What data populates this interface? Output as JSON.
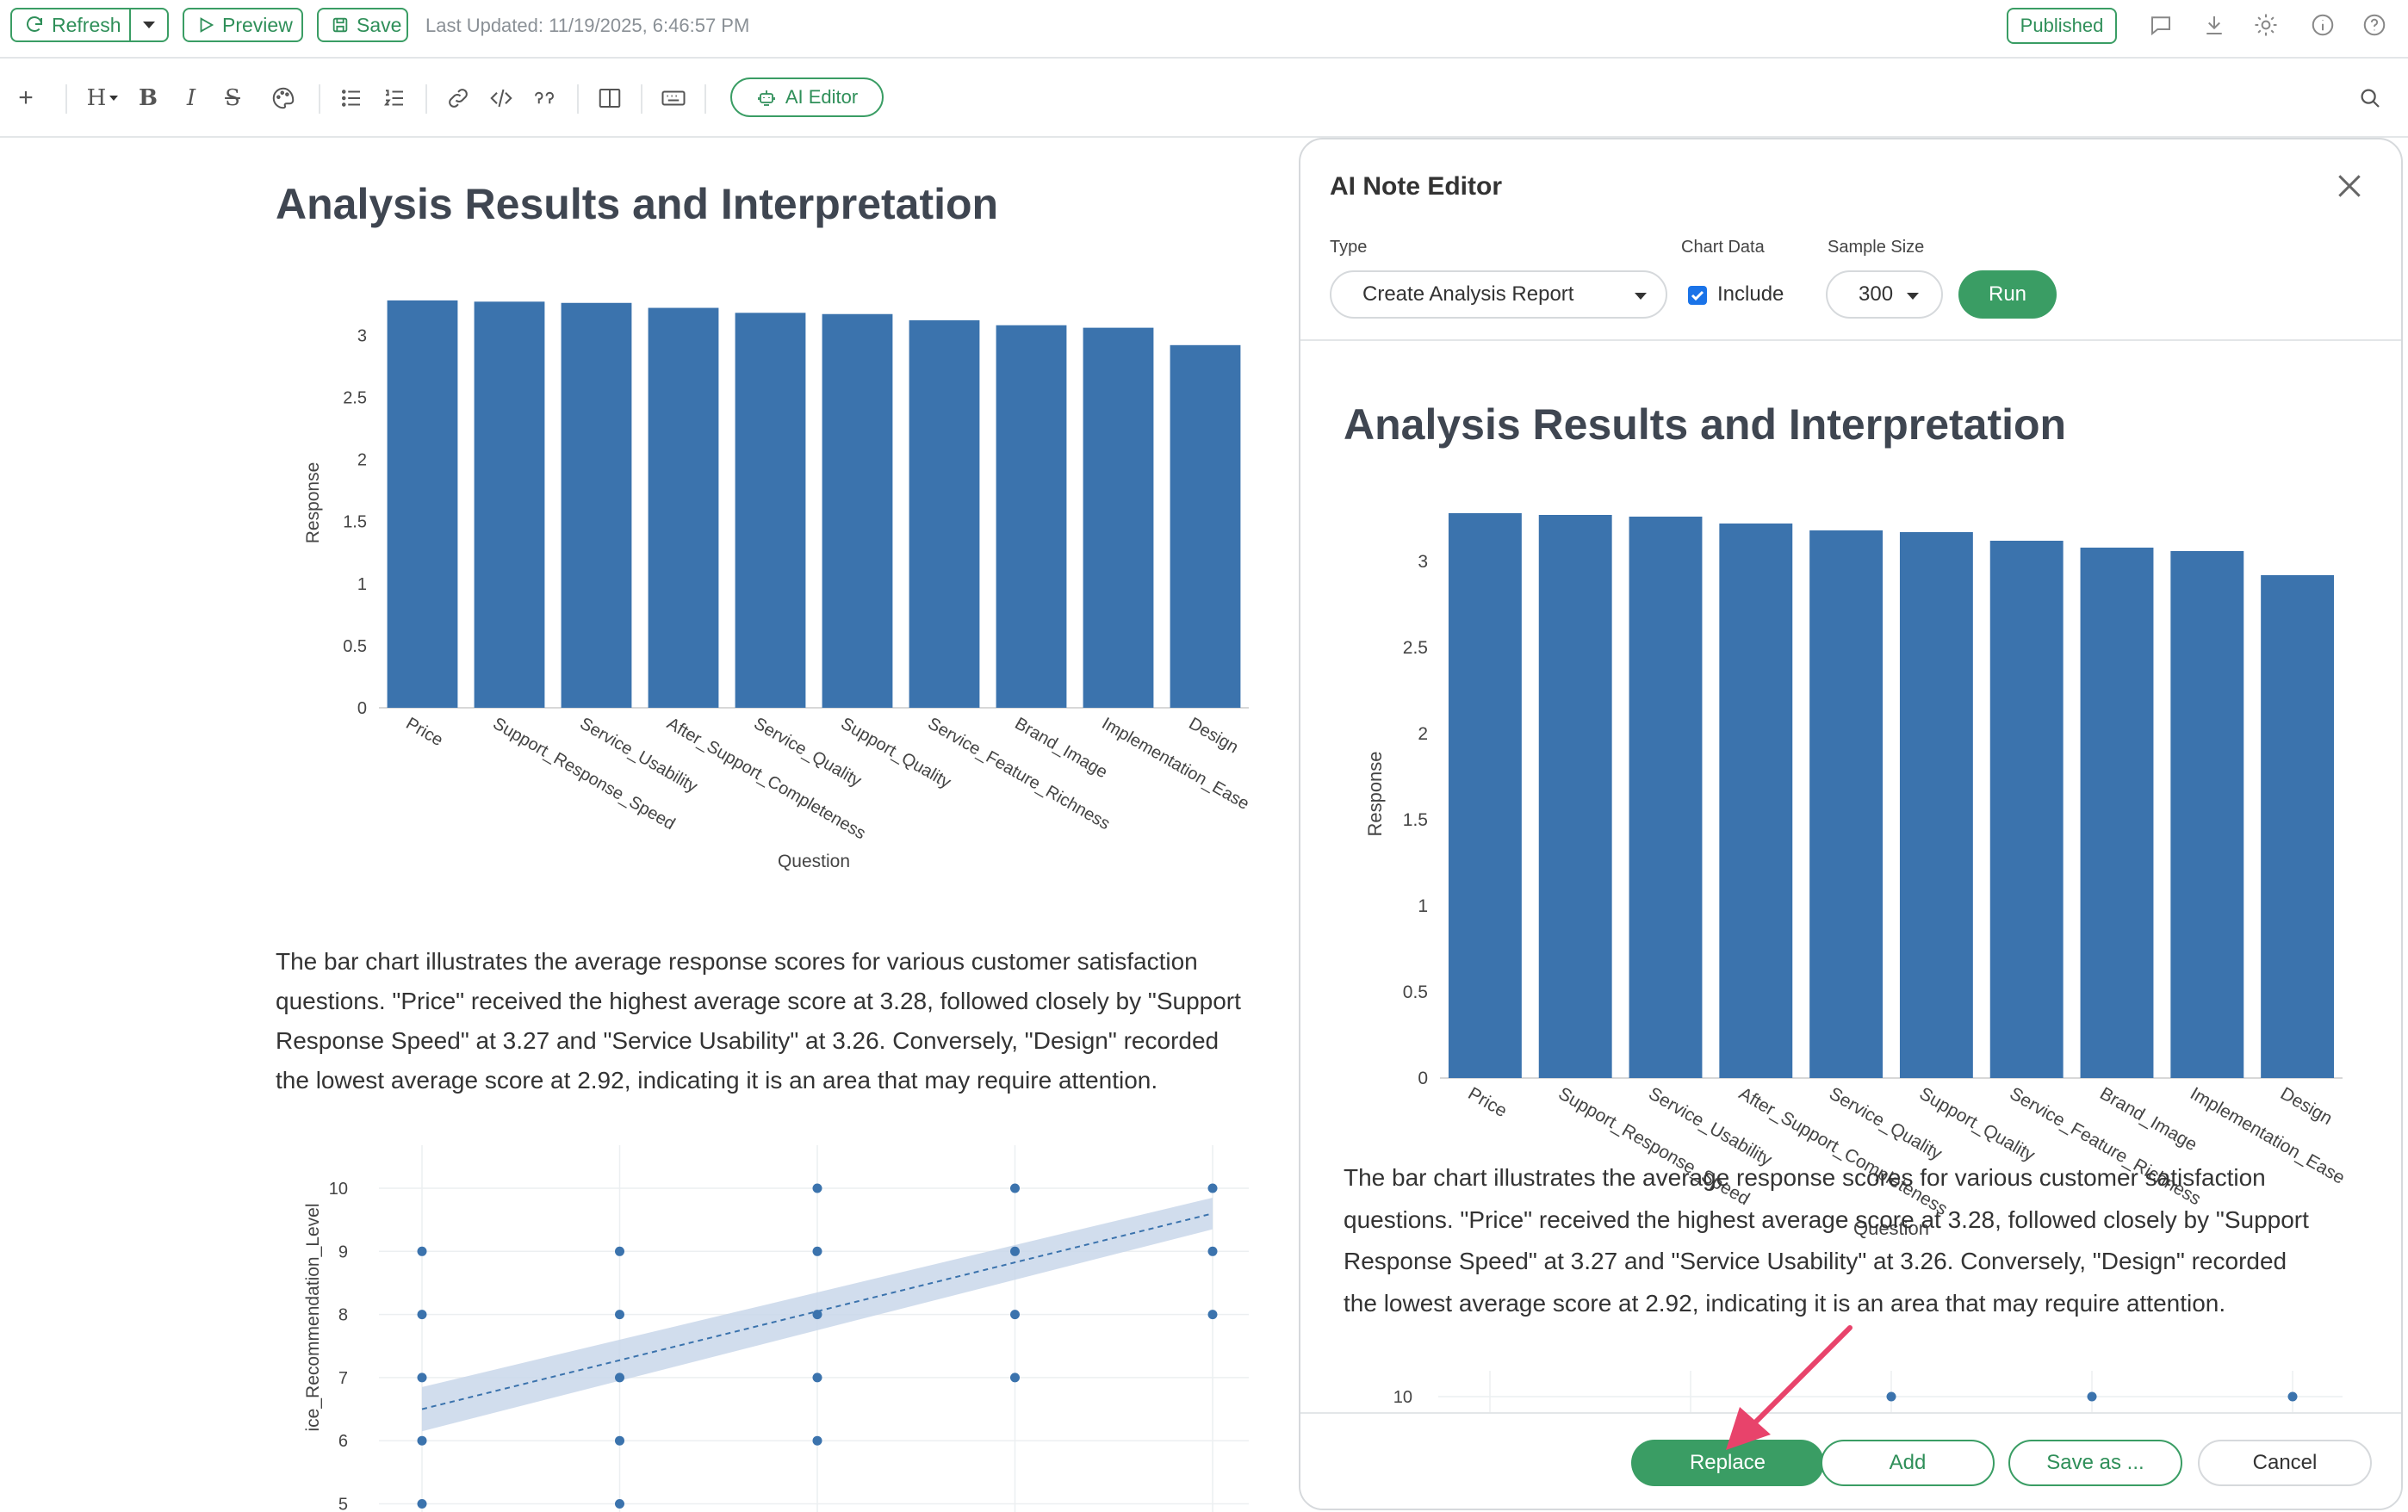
{
  "topbar": {
    "refresh_label": "Refresh",
    "preview_label": "Preview",
    "save_label": "Save",
    "last_updated": "Last Updated: 11/19/2025, 6:46:57 PM",
    "published_label": "Published",
    "icons": [
      "comment-icon",
      "download-icon",
      "gear-icon",
      "info-icon",
      "help-icon"
    ]
  },
  "toolbar": {
    "heading_label": "H",
    "ai_editor_label": "AI Editor"
  },
  "document": {
    "title": "Analysis Results and Interpretation",
    "paragraph_lines": [
      "The bar chart illustrates the average response scores for various customer satisfaction",
      "questions. \"Price\" received the highest average score at 3.28, followed closely by \"Support",
      "Response Speed\" at 3.27 and \"Service Usability\" at 3.26. Conversely, \"Design\" recorded",
      "the lowest average score at 2.92, indicating it is an area that may require attention."
    ]
  },
  "panel": {
    "title": "AI Note Editor",
    "type_label": "Type",
    "type_value": "Create Analysis Report",
    "chart_data_label": "Chart Data",
    "include_label": "Include",
    "include_checked": true,
    "sample_size_label": "Sample Size",
    "sample_size_value": "300",
    "run_label": "Run",
    "preview_title": "Analysis Results and Interpretation",
    "preview_paragraph_lines": [
      "The bar chart illustrates the average response scores for various customer satisfaction",
      "questions. \"Price\" received the highest average score at 3.28, followed closely by \"Support",
      "Response Speed\" at 3.27 and \"Service Usability\" at 3.26. Conversely, \"Design\" recorded",
      "the lowest average score at 2.92, indicating it is an area that may require attention."
    ],
    "replace_label": "Replace",
    "add_label": "Add",
    "save_as_label": "Save as ...",
    "cancel_label": "Cancel"
  },
  "colors": {
    "accent": "#3a9d64",
    "bar": "#3b73ad",
    "arrow": "#e8436b"
  },
  "chart_data": [
    {
      "type": "bar",
      "categories": [
        "Price",
        "Support_Response_Speed",
        "Service_Usability",
        "After_Support_Completeness",
        "Service_Quality",
        "Support_Quality",
        "Service_Feature_Richness",
        "Brand_Image",
        "Implementation_Ease",
        "Design"
      ],
      "values": [
        3.28,
        3.27,
        3.26,
        3.22,
        3.18,
        3.17,
        3.12,
        3.08,
        3.06,
        2.92
      ],
      "xlabel": "Question",
      "ylabel": "Response",
      "ylim": [
        0,
        3.3
      ],
      "yticks": [
        "0",
        "0.5",
        "1",
        "1.5",
        "2",
        "2.5",
        "3"
      ],
      "grid": false
    },
    {
      "type": "scatter",
      "ylabel": "ice_Recommendation_Level",
      "yticks": [
        "5",
        "6",
        "7",
        "8",
        "9",
        "10"
      ],
      "ylim": [
        5,
        10.4
      ],
      "x": [
        1,
        1,
        1,
        1,
        1,
        2,
        2,
        2,
        2,
        2,
        3,
        3,
        3,
        3,
        3,
        4,
        4,
        4,
        4,
        5,
        5,
        5
      ],
      "y": [
        9,
        8,
        7,
        6,
        5,
        9,
        8,
        7,
        6,
        5,
        10,
        9,
        8,
        7,
        6,
        10,
        9,
        8,
        7,
        10,
        9,
        8
      ],
      "trend": [
        [
          1,
          6.5
        ],
        [
          5,
          9.6
        ]
      ],
      "grid": true
    }
  ]
}
